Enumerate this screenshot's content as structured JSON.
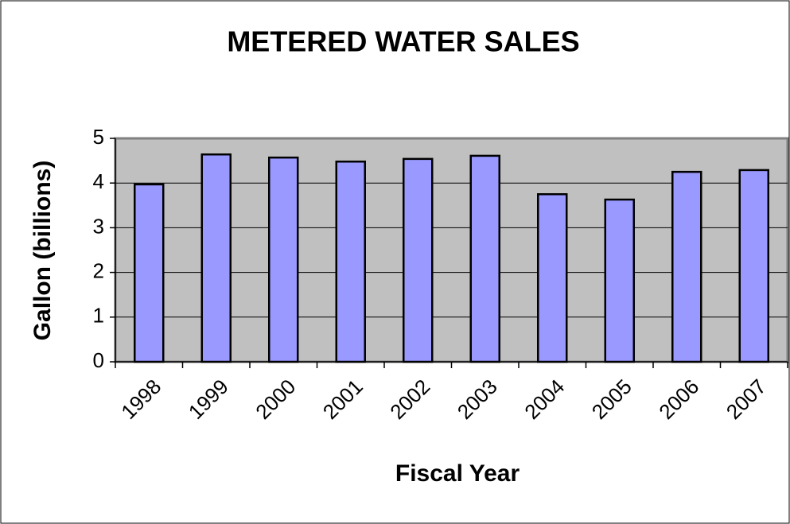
{
  "chart_data": {
    "type": "bar",
    "title": "METERED WATER SALES",
    "x_label": "Fiscal Year",
    "y_label": "Gallon (billions)",
    "categories": [
      "1998",
      "1999",
      "2000",
      "2001",
      "2002",
      "2003",
      "2004",
      "2005",
      "2006",
      "2007"
    ],
    "values": [
      3.97,
      4.64,
      4.57,
      4.48,
      4.54,
      4.61,
      3.75,
      3.63,
      4.25,
      4.29
    ],
    "color": "#9999ff",
    "ylim": [
      0,
      5
    ],
    "yticks": [
      0,
      1,
      2,
      3,
      4,
      5
    ],
    "grid": true
  }
}
